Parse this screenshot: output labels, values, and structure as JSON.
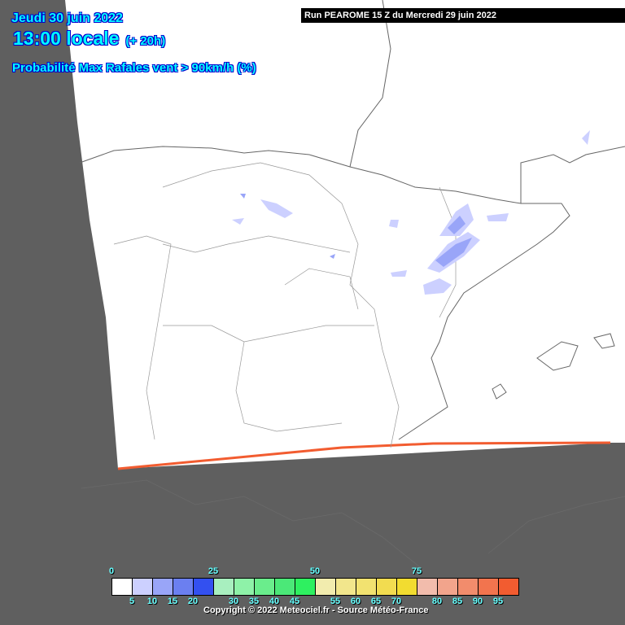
{
  "header": {
    "date": "Jeudi 30 juin 2022",
    "time": "13:00 locale",
    "lead": "(+ 20h)",
    "title": "Probabilité Max Rafales vent > 90km/h (%)",
    "run": "Run PEAROME 15 Z du Mercredi 29 juin 2022"
  },
  "legend": {
    "colors": [
      "#ffffff",
      "#ccd0ff",
      "#99a5f8",
      "#6b7ff0",
      "#3350f0",
      "#a8efbf",
      "#8ef2a8",
      "#6aed8c",
      "#4be878",
      "#2ef060",
      "#f2ecae",
      "#f2e68c",
      "#f2e270",
      "#f2dc50",
      "#f2dc30",
      "#f2bcac",
      "#f2a48c",
      "#f28c6c",
      "#f2744e",
      "#f25c30"
    ],
    "top_labels": [
      "0",
      "25",
      "50",
      "75"
    ],
    "bottom_labels": [
      "5",
      "10",
      "15",
      "20",
      "30",
      "35",
      "40",
      "45",
      "55",
      "60",
      "65",
      "70",
      "80",
      "85",
      "90",
      "95"
    ]
  },
  "copyright": "Copyright © 2022 Meteociel.fr - Source Météo-France",
  "colors": {
    "outside_domain": "#5f5f5f",
    "domain": "#ffffff",
    "domain_edge": "#f25c30",
    "borders": "#888888"
  }
}
